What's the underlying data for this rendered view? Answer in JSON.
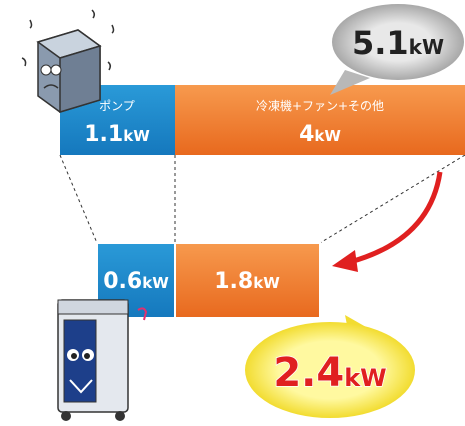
{
  "before": {
    "total": {
      "value": 5.1,
      "unit": "kW"
    },
    "segments": [
      {
        "label": "ポンプ",
        "value": 1.1,
        "unit": "kW"
      },
      {
        "label": "冷凍機+ファン+その他",
        "value": 4,
        "unit": "kW"
      }
    ]
  },
  "after": {
    "total": {
      "value": 2.4,
      "unit": "kW"
    },
    "segments": [
      {
        "value": 0.6,
        "unit": "kW"
      },
      {
        "value": 1.8,
        "unit": "kW"
      }
    ]
  }
}
